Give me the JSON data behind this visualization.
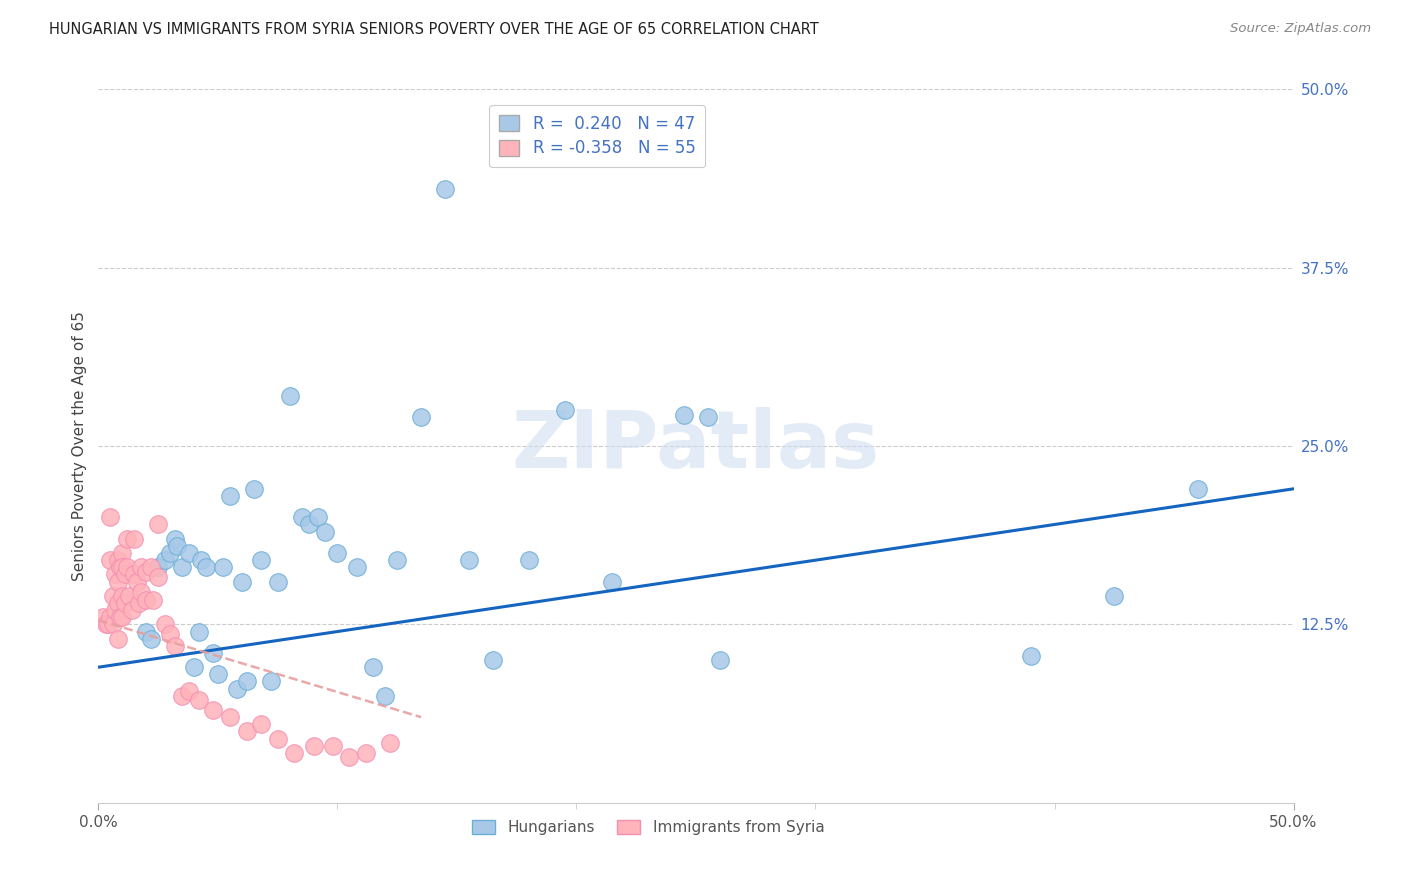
{
  "title": "HUNGARIAN VS IMMIGRANTS FROM SYRIA SENIORS POVERTY OVER THE AGE OF 65 CORRELATION CHART",
  "source": "Source: ZipAtlas.com",
  "ylabel": "Seniors Poverty Over the Age of 65",
  "xlim": [
    0.0,
    0.5
  ],
  "ylim": [
    0.0,
    0.5
  ],
  "xtick_vals": [
    0.0,
    0.5
  ],
  "xtick_labels": [
    "0.0%",
    "50.0%"
  ],
  "ytick_vals_right": [
    0.5,
    0.375,
    0.25,
    0.125,
    0.0
  ],
  "ytick_labels_right": [
    "50.0%",
    "37.5%",
    "25.0%",
    "12.5%",
    ""
  ],
  "r_hungarian": 0.24,
  "n_hungarian": 47,
  "r_syria": -0.358,
  "n_syria": 55,
  "hungarian_color": "#a8c8e8",
  "hungary_edge_color": "#6baed6",
  "syria_color": "#ffb3ba",
  "syria_edge_color": "#f48fb1",
  "trendline_hungarian_color": "#1565c0",
  "trendline_syria_color": "#e8a0a0",
  "legend_text_color": "#4472c4",
  "watermark": "ZIPatlas",
  "hun_trendline_x": [
    0.0,
    0.5
  ],
  "hun_trendline_y": [
    0.095,
    0.22
  ],
  "syr_trendline_x": [
    0.0,
    0.135
  ],
  "syr_trendline_y": [
    0.128,
    0.06
  ],
  "hungarian_x": [
    0.02,
    0.022,
    0.025,
    0.028,
    0.03,
    0.032,
    0.033,
    0.035,
    0.038,
    0.04,
    0.042,
    0.043,
    0.045,
    0.048,
    0.05,
    0.052,
    0.055,
    0.058,
    0.06,
    0.062,
    0.065,
    0.068,
    0.072,
    0.075,
    0.08,
    0.085,
    0.088,
    0.092,
    0.095,
    0.1,
    0.108,
    0.115,
    0.12,
    0.125,
    0.135,
    0.145,
    0.155,
    0.165,
    0.18,
    0.195,
    0.215,
    0.245,
    0.255,
    0.26,
    0.39,
    0.425,
    0.46
  ],
  "hungarian_y": [
    0.12,
    0.115,
    0.165,
    0.17,
    0.175,
    0.185,
    0.18,
    0.165,
    0.175,
    0.095,
    0.12,
    0.17,
    0.165,
    0.105,
    0.09,
    0.165,
    0.215,
    0.08,
    0.155,
    0.085,
    0.22,
    0.17,
    0.085,
    0.155,
    0.285,
    0.2,
    0.195,
    0.2,
    0.19,
    0.175,
    0.165,
    0.095,
    0.075,
    0.17,
    0.27,
    0.43,
    0.17,
    0.1,
    0.17,
    0.275,
    0.155,
    0.272,
    0.27,
    0.1,
    0.103,
    0.145,
    0.22
  ],
  "syria_x": [
    0.002,
    0.003,
    0.004,
    0.005,
    0.005,
    0.005,
    0.006,
    0.006,
    0.007,
    0.007,
    0.008,
    0.008,
    0.008,
    0.008,
    0.009,
    0.009,
    0.01,
    0.01,
    0.01,
    0.01,
    0.011,
    0.011,
    0.012,
    0.012,
    0.013,
    0.014,
    0.015,
    0.015,
    0.016,
    0.017,
    0.018,
    0.018,
    0.02,
    0.02,
    0.022,
    0.023,
    0.025,
    0.025,
    0.028,
    0.03,
    0.032,
    0.035,
    0.038,
    0.042,
    0.048,
    0.055,
    0.062,
    0.068,
    0.075,
    0.082,
    0.09,
    0.098,
    0.105,
    0.112,
    0.122
  ],
  "syria_y": [
    0.13,
    0.125,
    0.125,
    0.2,
    0.17,
    0.13,
    0.145,
    0.125,
    0.16,
    0.135,
    0.17,
    0.155,
    0.14,
    0.115,
    0.165,
    0.13,
    0.175,
    0.165,
    0.145,
    0.13,
    0.16,
    0.14,
    0.185,
    0.165,
    0.145,
    0.135,
    0.185,
    0.16,
    0.155,
    0.14,
    0.165,
    0.148,
    0.162,
    0.142,
    0.165,
    0.142,
    0.195,
    0.158,
    0.125,
    0.118,
    0.11,
    0.075,
    0.078,
    0.072,
    0.065,
    0.06,
    0.05,
    0.055,
    0.045,
    0.035,
    0.04,
    0.04,
    0.032,
    0.035,
    0.042
  ]
}
